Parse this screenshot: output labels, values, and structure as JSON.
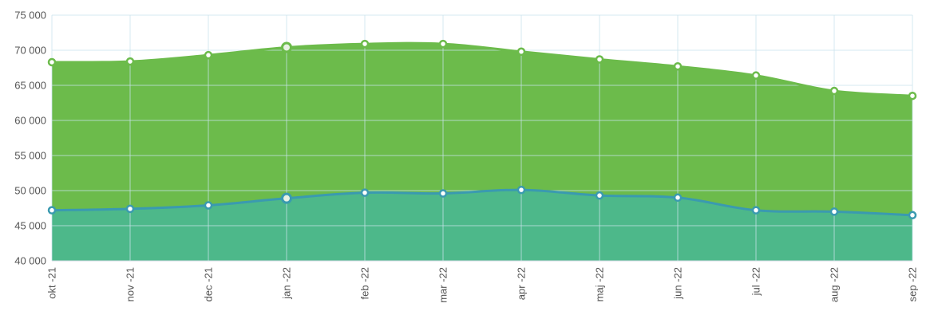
{
  "chart_data": {
    "type": "area",
    "title": "",
    "xlabel": "",
    "ylabel": "",
    "categories": [
      "okt -21",
      "nov -21",
      "dec -21",
      "jan -22",
      "feb -22",
      "mar -22",
      "apr -22",
      "maj -22",
      "jun -22",
      "jul -22",
      "aug -22",
      "sep -22"
    ],
    "ylim": [
      40000,
      75000
    ],
    "yticks": [
      40000,
      45000,
      50000,
      55000,
      60000,
      65000,
      70000,
      75000
    ],
    "ytick_labels": [
      "40 000",
      "45 000",
      "50 000",
      "55 000",
      "60 000",
      "65 000",
      "70 000",
      "75 000"
    ],
    "grid": true,
    "series": [
      {
        "values": [
          68300,
          68400,
          69300,
          70400,
          70900,
          70900,
          69800,
          68700,
          67700,
          66400,
          64200,
          63500
        ],
        "fill_color": "#6cbb4b",
        "line_color": "#6cbb4b",
        "marker_fill": "#ffffff"
      },
      {
        "values": [
          47200,
          47400,
          47900,
          48900,
          49700,
          49600,
          50100,
          49300,
          49000,
          47200,
          47000,
          46500
        ],
        "fill_color": "#4db88a",
        "line_color": "#3a9ab0",
        "marker_fill": "#ffffff"
      }
    ],
    "highlighted_index": 3
  }
}
